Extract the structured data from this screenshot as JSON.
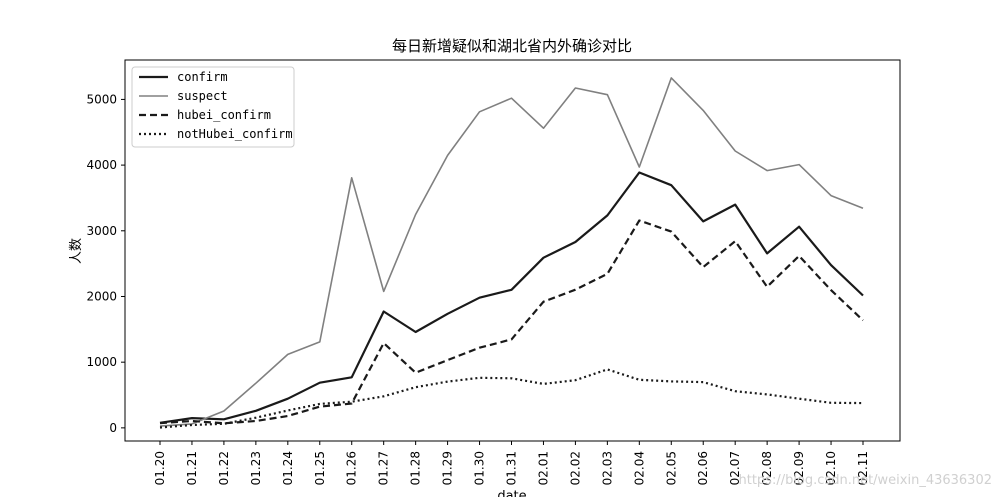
{
  "chart_data": {
    "type": "line",
    "title": "每日新增疑似和湖北省内外确诊对比",
    "xlabel": "date",
    "ylabel": "人数",
    "categories": [
      "01.20",
      "01.21",
      "01.22",
      "01.23",
      "01.24",
      "01.25",
      "01.26",
      "01.27",
      "01.28",
      "01.29",
      "01.30",
      "01.31",
      "02.01",
      "02.02",
      "02.03",
      "02.04",
      "02.05",
      "02.06",
      "02.07",
      "02.08",
      "02.09",
      "02.10",
      "02.11"
    ],
    "ylim": [
      -200,
      5600
    ],
    "yticks": [
      0,
      1000,
      2000,
      3000,
      4000,
      5000
    ],
    "grid": false,
    "legend_position": "top-left",
    "series": [
      {
        "name": "confirm",
        "color": "#1a1a1a",
        "style": "solid",
        "width": 2.2,
        "values": [
          77,
          149,
          131,
          259,
          444,
          688,
          769,
          1771,
          1459,
          1737,
          1982,
          2102,
          2590,
          2829,
          3235,
          3887,
          3694,
          3143,
          3399,
          2656,
          3062,
          2478,
          2015
        ]
      },
      {
        "name": "suspect",
        "color": "#808080",
        "style": "solid",
        "width": 1.6,
        "values": [
          27,
          60,
          257,
          680,
          1118,
          1309,
          3806,
          2077,
          3248,
          4148,
          4812,
          5019,
          4562,
          5173,
          5072,
          3971,
          5328,
          4833,
          4214,
          3916,
          4008,
          3536,
          3342
        ]
      },
      {
        "name": "hubei_confirm",
        "color": "#1a1a1a",
        "style": "dashed",
        "width": 2.2,
        "values": [
          72,
          105,
          69,
          105,
          180,
          323,
          371,
          1291,
          840,
          1032,
          1220,
          1347,
          1921,
          2103,
          2345,
          3156,
          2987,
          2447,
          2841,
          2147,
          2618,
          2097,
          1638
        ]
      },
      {
        "name": "notHubei_confirm",
        "color": "#1a1a1a",
        "style": "dotted",
        "width": 2.2,
        "values": [
          5,
          44,
          62,
          154,
          264,
          365,
          398,
          480,
          619,
          705,
          762,
          755,
          669,
          726,
          890,
          731,
          707,
          696,
          558,
          509,
          444,
          381,
          377
        ]
      }
    ]
  },
  "watermark": "https://blog.csdn.net/weixin_43636302"
}
